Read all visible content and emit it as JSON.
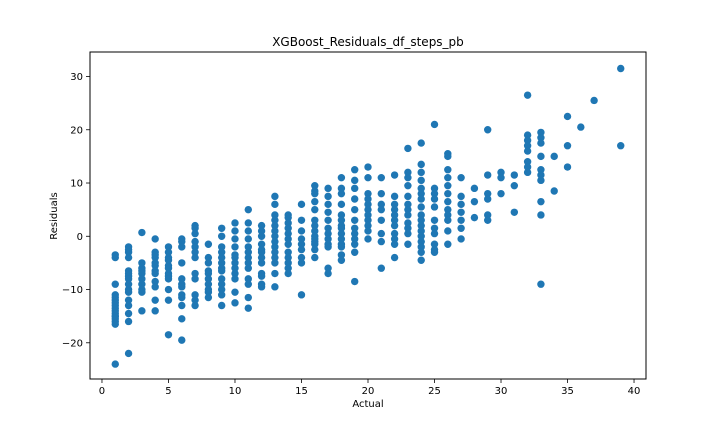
{
  "chart_data": {
    "type": "scatter",
    "title": "XGBoost_Residuals_df_steps_pb",
    "xlabel": "Actual",
    "ylabel": "Residuals",
    "xlim": [
      -0.9,
      40.9
    ],
    "ylim": [
      -26.8,
      34.6
    ],
    "xticks": [
      0,
      5,
      10,
      15,
      20,
      25,
      30,
      35,
      40
    ],
    "yticks": [
      -20,
      -10,
      0,
      10,
      20,
      30
    ],
    "marker_color": "#1f77b4",
    "grid": false,
    "legend": "none",
    "series": [
      {
        "x": [
          1,
          1,
          1,
          1,
          1,
          1,
          1,
          1,
          1,
          1,
          1,
          1,
          1,
          1,
          1,
          1,
          1,
          2,
          2,
          2,
          2,
          2,
          2,
          2,
          2,
          2,
          2,
          2,
          2,
          2,
          2,
          2,
          2,
          3,
          3,
          3,
          3,
          3,
          3,
          3,
          3,
          3,
          3,
          4,
          4,
          4,
          4,
          4,
          4,
          4,
          4,
          4,
          4,
          4,
          4,
          5,
          5,
          5,
          5,
          5,
          5,
          5,
          5,
          5,
          5,
          5,
          5,
          6,
          6,
          6,
          6,
          6,
          6,
          6,
          6,
          6,
          6,
          6,
          6,
          7,
          7,
          7,
          7,
          7,
          7,
          7,
          7,
          7,
          7,
          7,
          7,
          8,
          8,
          8,
          8,
          8,
          8,
          8,
          8,
          8,
          8,
          9,
          9,
          9,
          9,
          9,
          9,
          9,
          9,
          9,
          9,
          9,
          9,
          9,
          10,
          10,
          10,
          10,
          10,
          10,
          10,
          10,
          10,
          10,
          10,
          10,
          11,
          11,
          11,
          11,
          11,
          11,
          11,
          11,
          11,
          11,
          11,
          11,
          11,
          12,
          12,
          12,
          12,
          12,
          12,
          12,
          12,
          12,
          12,
          12,
          12,
          13,
          13,
          13,
          13,
          13,
          13,
          13,
          13,
          13,
          13,
          13,
          13,
          13,
          13,
          14,
          14,
          14,
          14,
          14,
          14,
          14,
          14,
          14,
          14,
          14,
          14,
          15,
          15,
          15,
          15,
          15,
          15,
          15,
          15,
          15,
          16,
          16,
          16,
          16,
          16,
          16,
          16,
          16,
          16,
          16,
          16,
          16,
          16,
          16,
          17,
          17,
          17,
          17,
          17,
          17,
          17,
          17,
          17,
          17,
          17,
          17,
          18,
          18,
          18,
          18,
          18,
          18,
          18,
          18,
          18,
          18,
          18,
          18,
          18,
          18,
          19,
          19,
          19,
          19,
          19,
          19,
          19,
          19,
          19,
          19,
          19,
          19,
          20,
          20,
          20,
          20,
          20,
          20,
          20,
          20,
          20,
          20,
          20,
          21,
          21,
          21,
          21,
          21,
          21,
          21,
          21,
          22,
          22,
          22,
          22,
          22,
          22,
          22,
          22,
          22,
          22,
          22,
          23,
          23,
          23,
          23,
          23,
          23,
          23,
          23,
          23,
          23,
          23,
          23,
          24,
          24,
          24,
          24,
          24,
          24,
          24,
          24,
          24,
          24,
          24,
          24,
          24,
          24,
          24,
          24,
          24,
          25,
          25,
          25,
          25,
          25,
          25,
          25,
          25,
          25,
          25,
          25,
          26,
          26,
          26,
          26,
          26,
          26,
          26,
          26,
          26,
          26,
          26,
          26,
          27,
          27,
          27,
          27,
          27,
          27,
          27,
          28,
          28,
          28,
          29,
          29,
          29,
          29,
          29,
          29,
          30,
          30,
          30,
          31,
          31,
          31,
          32,
          32,
          32,
          32,
          32,
          32,
          32,
          32,
          33,
          33,
          33,
          33,
          33,
          33,
          33,
          33,
          33,
          33,
          34,
          34,
          35,
          35,
          35,
          36,
          37,
          39,
          39
        ],
        "y": [
          -4,
          -3.5,
          -9,
          -11,
          -12,
          -13,
          -13.5,
          -14,
          -14.5,
          -15,
          -15.5,
          -16,
          -16.5,
          -24,
          -15,
          -12.5,
          -11.5,
          -2,
          -2.5,
          -3,
          -4,
          -7,
          -7.5,
          -8,
          -10,
          -10.5,
          -12,
          -13,
          -14.5,
          -16,
          -22,
          -9,
          -6.5,
          0.7,
          -6,
          -6.5,
          -7,
          -8,
          -9,
          -10,
          -10.5,
          -14,
          -5,
          -0.5,
          -3,
          -4,
          -5,
          -5.5,
          -6.5,
          -7,
          -8.5,
          -9.5,
          -12,
          -14,
          -3.5,
          -2,
          -3,
          -4,
          -5.5,
          -6,
          -7,
          -7.5,
          -8,
          -10,
          -12,
          -18.5,
          -4.5,
          -0.5,
          -1,
          -2,
          -5,
          -8,
          -9,
          -9.5,
          -11,
          -11.5,
          -13,
          -15.5,
          -19.5,
          2,
          1.5,
          0.5,
          -1,
          -2,
          -3,
          -4,
          -7,
          -8,
          -11,
          -12,
          -13,
          -1.5,
          -4,
          -5,
          -6.5,
          -7,
          -8,
          -9,
          -10,
          -10.5,
          -11.5,
          1.5,
          0,
          -2,
          -3,
          -4,
          -5,
          -6,
          -6.5,
          -8,
          -9,
          -10,
          -11,
          -13,
          2.5,
          1,
          -0.5,
          -2,
          -3.5,
          -4,
          -5,
          -6,
          -7,
          -8,
          -10.5,
          -12.5,
          5,
          2.5,
          1,
          -0.5,
          -2,
          -3,
          -4,
          -5,
          -6,
          -8,
          -9,
          -11.5,
          -13.5,
          2,
          1,
          0,
          -1.5,
          -2.5,
          -3,
          -4,
          -5,
          -7,
          -7.5,
          -9,
          -9.5,
          7.5,
          6,
          4,
          3,
          2,
          1,
          0,
          -1,
          -2,
          -3,
          -4,
          -5,
          -7,
          -9.5,
          4,
          3.5,
          2.5,
          1.5,
          0.5,
          -0.5,
          -1.5,
          -3,
          -4,
          -5,
          -6,
          -7,
          6,
          3,
          1,
          -0.5,
          -1.5,
          -2.5,
          -4,
          -5,
          -11,
          9.5,
          8.5,
          8,
          6.5,
          5,
          3,
          2,
          1,
          0,
          -0.5,
          -1,
          -1.5,
          -2.5,
          -4,
          9,
          7.5,
          6,
          4.5,
          3,
          1.5,
          0.5,
          -0.5,
          -1.5,
          -2,
          -6,
          -7,
          11,
          9,
          8,
          6,
          4,
          3,
          2,
          1.5,
          0.5,
          -0.5,
          -1.5,
          -2,
          -3.5,
          -4.5,
          12.5,
          10.5,
          9,
          7,
          5,
          3,
          1.5,
          0.5,
          -0.5,
          -1.5,
          -3,
          -8.5,
          13,
          11,
          8,
          7,
          6,
          5,
          4,
          3,
          2,
          1,
          -0.5,
          11,
          8,
          6,
          5,
          3,
          0.5,
          -1,
          -6,
          11.5,
          7.5,
          6,
          5,
          4,
          3,
          2,
          0.5,
          -0.5,
          -1.5,
          -4,
          16.5,
          12,
          11,
          9.5,
          7.5,
          6,
          5,
          4,
          2.5,
          1.5,
          0.5,
          -1.5,
          17.5,
          13.5,
          12,
          10.5,
          9,
          8,
          7,
          5.5,
          4,
          3,
          2,
          1,
          0,
          -1,
          -2,
          -3,
          -4.5,
          21,
          9,
          8,
          7,
          5.5,
          3,
          1.5,
          0.5,
          -1.5,
          -2.5,
          -3,
          15.5,
          15,
          12.5,
          11,
          9.5,
          8,
          6.5,
          5,
          4,
          3,
          1,
          -1.5,
          11,
          7.5,
          6,
          4.5,
          3,
          1.5,
          -0.5,
          9,
          6.5,
          3.5,
          20,
          11.5,
          8,
          7,
          4,
          3,
          12,
          11,
          8,
          11.5,
          9.5,
          4.5,
          26.5,
          19,
          18,
          17,
          16,
          14,
          13,
          12,
          19.5,
          18.5,
          17.5,
          15,
          12.5,
          11.5,
          10.5,
          6.5,
          4,
          -9,
          15,
          8.5,
          22.5,
          17,
          13,
          20.5,
          25.5,
          31.5,
          17
        ]
      }
    ]
  }
}
